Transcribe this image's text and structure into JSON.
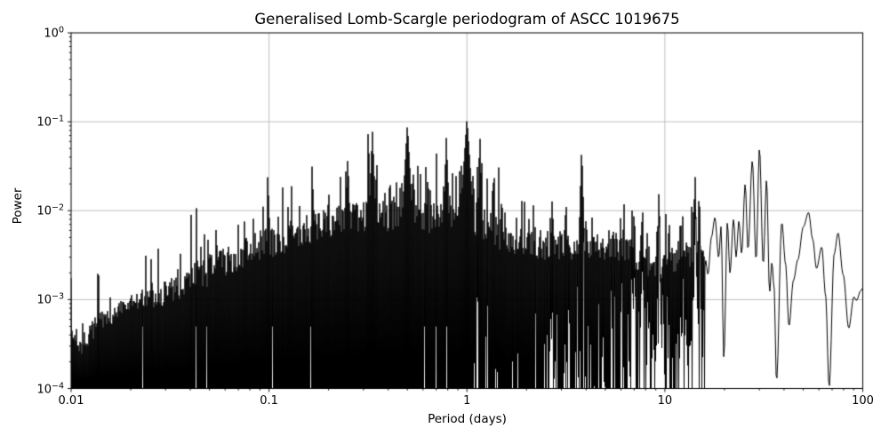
{
  "chart_data": {
    "type": "line",
    "title": "Generalised Lomb-Scargle periodogram of ASCC 1019675",
    "xlabel": "Period (days)",
    "ylabel": "Power",
    "xscale": "log",
    "yscale": "log",
    "xlim_days": [
      0.01,
      100
    ],
    "ylim": [
      0.0001,
      1
    ],
    "grid": true,
    "legend": "none",
    "line_color": "#000000",
    "grid_color": "#b0b0b0",
    "background_color": "#ffffff",
    "x_ticks": [
      {
        "value": 0.01,
        "label": "0.01"
      },
      {
        "value": 0.1,
        "label": "0.1"
      },
      {
        "value": 1,
        "label": "1"
      },
      {
        "value": 10,
        "label": "10"
      },
      {
        "value": 100,
        "label": "100"
      }
    ],
    "y_ticks": [
      {
        "value": 1,
        "base": "10",
        "exp": "0"
      },
      {
        "value": 0.1,
        "base": "10",
        "exp": "−1"
      },
      {
        "value": 0.01,
        "base": "10",
        "exp": "−2"
      },
      {
        "value": 0.001,
        "base": "10",
        "exp": "−3"
      },
      {
        "value": 0.0001,
        "base": "10",
        "exp": "−4"
      }
    ],
    "peaks": [
      {
        "period_days": 0.0833,
        "power": 0.0085,
        "w": 0.5
      },
      {
        "period_days": 0.0909,
        "power": 0.0095,
        "w": 0.5
      },
      {
        "period_days": 0.1,
        "power": 0.0105,
        "w": 0.45
      },
      {
        "period_days": 0.111,
        "power": 0.0115,
        "w": 0.45
      },
      {
        "period_days": 0.125,
        "power": 0.0135,
        "w": 0.45
      },
      {
        "period_days": 0.143,
        "power": 0.014,
        "w": 0.45
      },
      {
        "period_days": 0.167,
        "power": 0.021,
        "w": 0.4
      },
      {
        "period_days": 0.2,
        "power": 0.021,
        "w": 0.4
      },
      {
        "period_days": 0.25,
        "power": 0.042,
        "w": 0.3
      },
      {
        "period_days": 0.333,
        "power": 0.08,
        "w": 0.25
      },
      {
        "period_days": 0.5,
        "power": 0.095,
        "w": 0.18
      },
      {
        "period_days": 0.62,
        "power": 0.032,
        "w": 0.45
      },
      {
        "period_days": 0.787,
        "power": 0.07,
        "w": 0.3
      },
      {
        "period_days": 0.92,
        "power": 0.033,
        "w": 0.4
      },
      {
        "period_days": 1.0,
        "power": 0.11,
        "w": 0.15
      },
      {
        "period_days": 1.13,
        "power": 0.033,
        "w": 0.4
      },
      {
        "period_days": 1.35,
        "power": 0.022,
        "w": 0.45
      },
      {
        "period_days": 1.5,
        "power": 0.019,
        "w": 0.45
      },
      {
        "period_days": 2.05,
        "power": 0.012,
        "w": 0.5
      },
      {
        "period_days": 2.7,
        "power": 0.017,
        "w": 0.45
      },
      {
        "period_days": 3.15,
        "power": 0.011,
        "w": 0.5
      },
      {
        "period_days": 3.8,
        "power": 0.055,
        "w": 0.35
      },
      {
        "period_days": 4.3,
        "power": 0.0115,
        "w": 0.5
      },
      {
        "period_days": 5.2,
        "power": 0.009,
        "w": 0.5
      },
      {
        "period_days": 6.2,
        "power": 0.013,
        "w": 0.5
      },
      {
        "period_days": 7.0,
        "power": 0.0135,
        "w": 0.5
      },
      {
        "period_days": 7.7,
        "power": 0.015,
        "w": 0.5
      },
      {
        "period_days": 9.3,
        "power": 0.018,
        "w": 0.5
      },
      {
        "period_days": 10.5,
        "power": 0.011,
        "w": 0.5
      },
      {
        "period_days": 12.0,
        "power": 0.012,
        "w": 0.5
      },
      {
        "period_days": 14.2,
        "power": 0.03,
        "w": 0.45
      },
      {
        "period_days": 14.9,
        "power": 0.02,
        "w": 0.45
      }
    ],
    "noise_envelope_log10": [
      [
        -2.0,
        -3.34
      ],
      [
        -1.95,
        -3.52
      ],
      [
        -1.87,
        -3.28
      ],
      [
        -1.78,
        -3.16
      ],
      [
        -1.65,
        -3.0
      ],
      [
        -1.5,
        -2.88
      ],
      [
        -1.35,
        -2.72
      ],
      [
        -1.2,
        -2.56
      ],
      [
        -1.05,
        -2.4
      ],
      [
        -0.9,
        -2.3
      ],
      [
        -0.75,
        -2.18
      ],
      [
        -0.6,
        -2.1
      ],
      [
        -0.45,
        -2.06
      ],
      [
        -0.3,
        -2.05
      ],
      [
        -0.15,
        -2.08
      ],
      [
        0.0,
        -2.05
      ],
      [
        0.15,
        -2.25
      ],
      [
        0.3,
        -2.35
      ],
      [
        0.5,
        -2.4
      ],
      [
        0.65,
        -2.38
      ],
      [
        0.78,
        -2.42
      ],
      [
        0.9,
        -2.55
      ],
      [
        1.0,
        -2.6
      ],
      [
        1.1,
        -2.45
      ],
      [
        1.2,
        -2.5
      ]
    ],
    "smooth_tail_log10": [
      [
        1.195,
        -3.1
      ],
      [
        1.205,
        -2.55
      ],
      [
        1.218,
        -2.72
      ],
      [
        1.235,
        -2.3
      ],
      [
        1.253,
        -2.08
      ],
      [
        1.272,
        -2.53
      ],
      [
        1.284,
        -2.18
      ],
      [
        1.298,
        -3.66
      ],
      [
        1.316,
        -2.13
      ],
      [
        1.329,
        -2.7
      ],
      [
        1.347,
        -2.1
      ],
      [
        1.36,
        -2.52
      ],
      [
        1.374,
        -2.12
      ],
      [
        1.388,
        -2.48
      ],
      [
        1.406,
        -1.7
      ],
      [
        1.42,
        -2.44
      ],
      [
        1.442,
        -1.44
      ],
      [
        1.461,
        -2.56
      ],
      [
        1.478,
        -1.3
      ],
      [
        1.497,
        -2.61
      ],
      [
        1.514,
        -1.65
      ],
      [
        1.529,
        -2.92
      ],
      [
        1.541,
        -2.58
      ],
      [
        1.552,
        -2.87
      ],
      [
        1.564,
        -3.92
      ],
      [
        1.591,
        -2.13
      ],
      [
        1.61,
        -2.6
      ],
      [
        1.627,
        -3.3
      ],
      [
        1.65,
        -2.78
      ],
      [
        1.672,
        -2.55
      ],
      [
        1.7,
        -2.18
      ],
      [
        1.726,
        -2.02
      ],
      [
        1.747,
        -2.32
      ],
      [
        1.766,
        -2.65
      ],
      [
        1.793,
        -2.41
      ],
      [
        1.812,
        -2.95
      ],
      [
        1.83,
        -3.98
      ],
      [
        1.856,
        -2.48
      ],
      [
        1.875,
        -2.25
      ],
      [
        1.901,
        -2.72
      ],
      [
        1.929,
        -3.32
      ],
      [
        1.955,
        -2.97
      ],
      [
        1.968,
        -3.01
      ],
      [
        1.99,
        -2.9
      ],
      [
        2.0,
        -2.87
      ]
    ],
    "noise_to_smooth_transition_days": 15.8,
    "render_seed": 7
  }
}
